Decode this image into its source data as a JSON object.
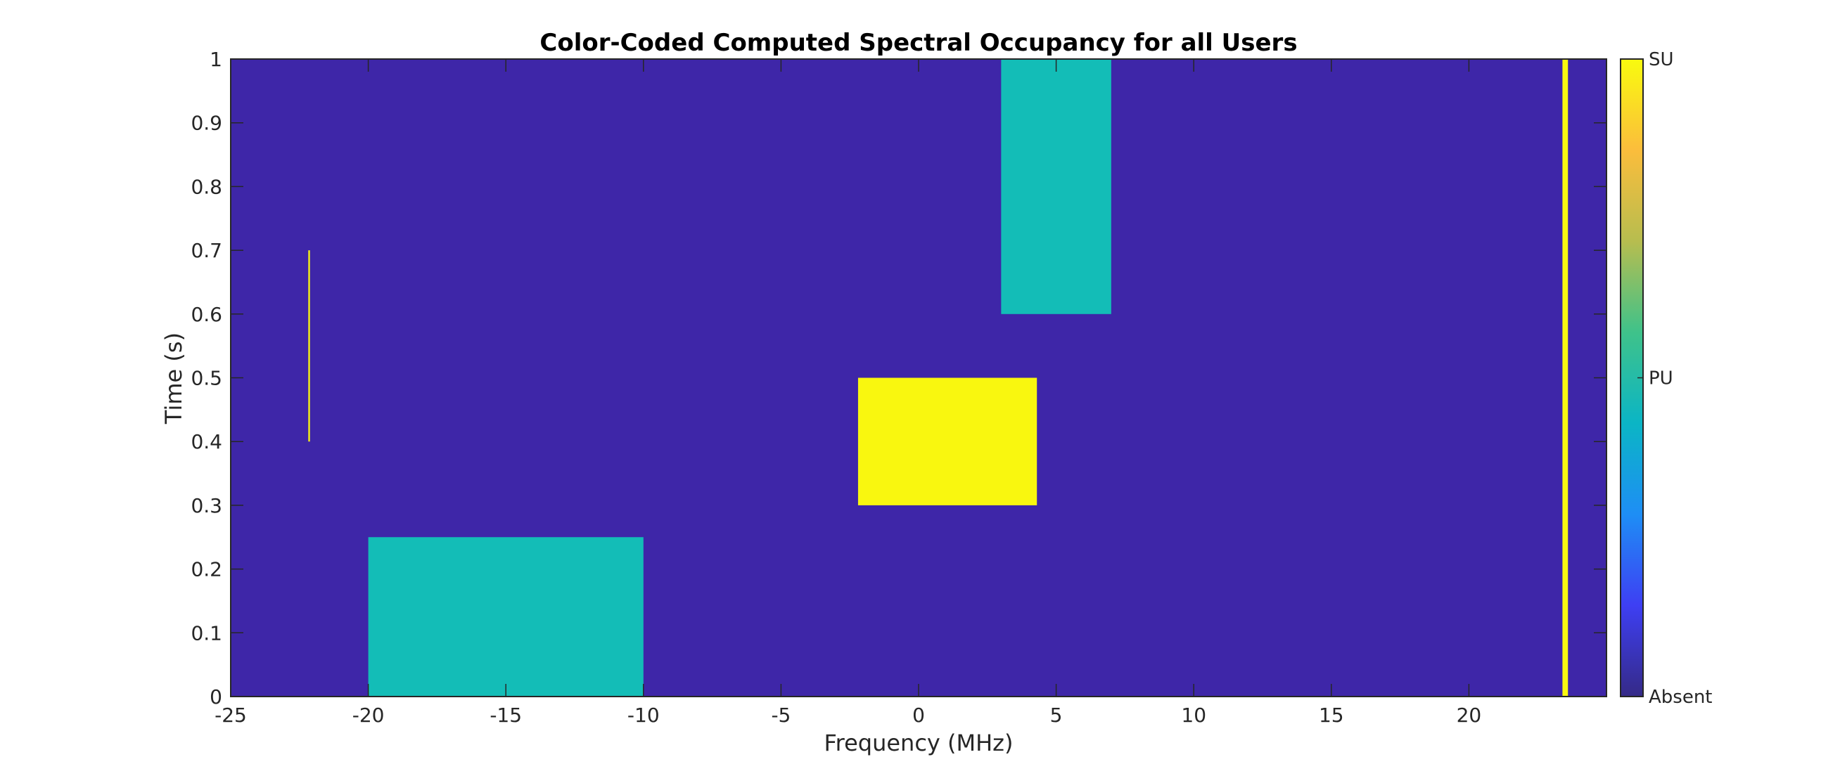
{
  "chart_data": {
    "type": "heatmap",
    "title": "Color-Coded Computed Spectral Occupancy for all Users",
    "xlabel": "Frequency (MHz)",
    "ylabel": "Time (s)",
    "xlim": [
      -25,
      25
    ],
    "ylim": [
      0,
      1
    ],
    "xticks": [
      -25,
      -20,
      -15,
      -10,
      -5,
      0,
      5,
      10,
      15,
      20
    ],
    "xtick_labels": [
      "-25",
      "-20",
      "-15",
      "-10",
      "-5",
      "0",
      "5",
      "10",
      "15",
      "20"
    ],
    "yticks": [
      0,
      0.1,
      0.2,
      0.3,
      0.4,
      0.5,
      0.6,
      0.7,
      0.8,
      0.9,
      1
    ],
    "ytick_labels": [
      "0",
      "0.1",
      "0.2",
      "0.3",
      "0.4",
      "0.5",
      "0.6",
      "0.7",
      "0.8",
      "0.9",
      "1"
    ],
    "grid": false,
    "background_level": "Absent",
    "colorbar": {
      "position": "right",
      "ticks": [
        0,
        0.5,
        1
      ],
      "labels": [
        "Absent",
        "PU",
        "SU"
      ],
      "colormap": "parula"
    },
    "regions": [
      {
        "level": "PU",
        "x": [
          -20,
          -10
        ],
        "y": [
          0,
          0.25
        ]
      },
      {
        "level": "SU",
        "x": [
          -2.2,
          4.3
        ],
        "y": [
          0.3,
          0.5
        ]
      },
      {
        "level": "PU",
        "x": [
          3.0,
          7.0
        ],
        "y": [
          0.6,
          1.0
        ]
      },
      {
        "level": "SU",
        "x": [
          23.4,
          23.6
        ],
        "y": [
          0,
          1.0
        ]
      },
      {
        "level": "SU",
        "x": [
          -22.18,
          -22.12
        ],
        "y": [
          0.4,
          0.7
        ]
      }
    ],
    "level_colors": {
      "Absent": "#3e26a8",
      "PU": "#13bdb7",
      "SU": "#f9f70f"
    }
  }
}
